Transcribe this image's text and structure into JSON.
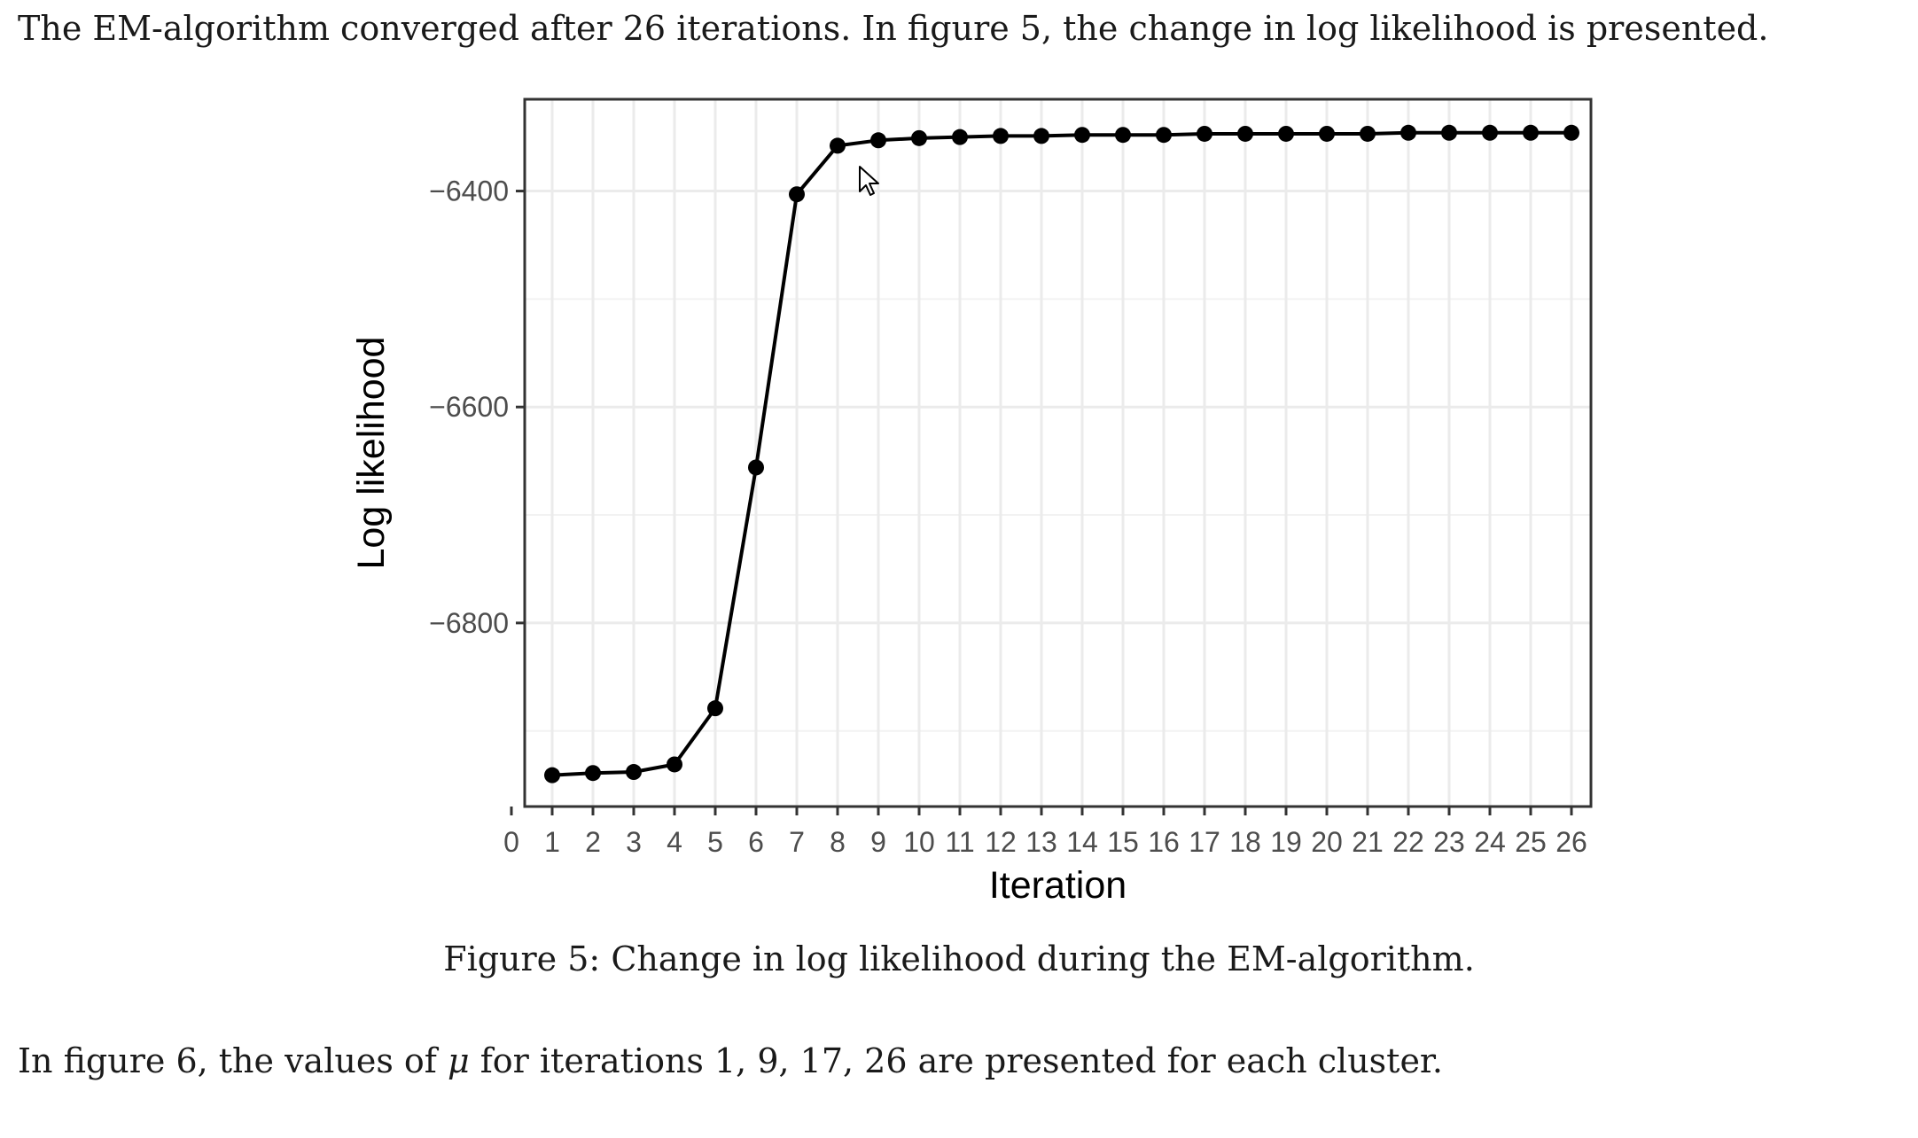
{
  "text": {
    "para1": "The EM-algorithm converged after 26 iterations. In figure 5, the change in log likelihood is presented.",
    "caption": "Figure 5: Change in log likelihood during the EM-algorithm.",
    "para2_before": "In figure 6, the values of ",
    "para2_symbol": "μ",
    "para2_after": " for iterations 1, 9, 17, 26 are presented for each cluster."
  },
  "chart_data": {
    "type": "line",
    "title": "",
    "xlabel": "Iteration",
    "ylabel": "Log likelihood",
    "x": [
      1,
      2,
      3,
      4,
      5,
      6,
      7,
      8,
      9,
      10,
      11,
      12,
      13,
      14,
      15,
      16,
      17,
      18,
      19,
      20,
      21,
      22,
      23,
      24,
      25,
      26
    ],
    "y": [
      -6941,
      -6939,
      -6938,
      -6931,
      -6879,
      -6656,
      -6403,
      -6358,
      -6353,
      -6351,
      -6350,
      -6349,
      -6349,
      -6348,
      -6348,
      -6348,
      -6347,
      -6347,
      -6347,
      -6347,
      -6347,
      -6346,
      -6346,
      -6346,
      -6346,
      -6346
    ],
    "xlim": [
      0,
      26
    ],
    "ylim": [
      -6970,
      -6315
    ],
    "x_ticks": [
      0,
      1,
      2,
      3,
      4,
      5,
      6,
      7,
      8,
      9,
      10,
      11,
      12,
      13,
      14,
      15,
      16,
      17,
      18,
      19,
      20,
      21,
      22,
      23,
      24,
      25,
      26
    ],
    "y_ticks": [
      -6400,
      -6600,
      -6800
    ],
    "y_tick_labels": [
      "−6400",
      "−6600",
      "−6800"
    ],
    "grid": true,
    "markers": true,
    "line_color": "#000000"
  },
  "icons": {
    "cursor": "mouse-pointer-icon"
  }
}
